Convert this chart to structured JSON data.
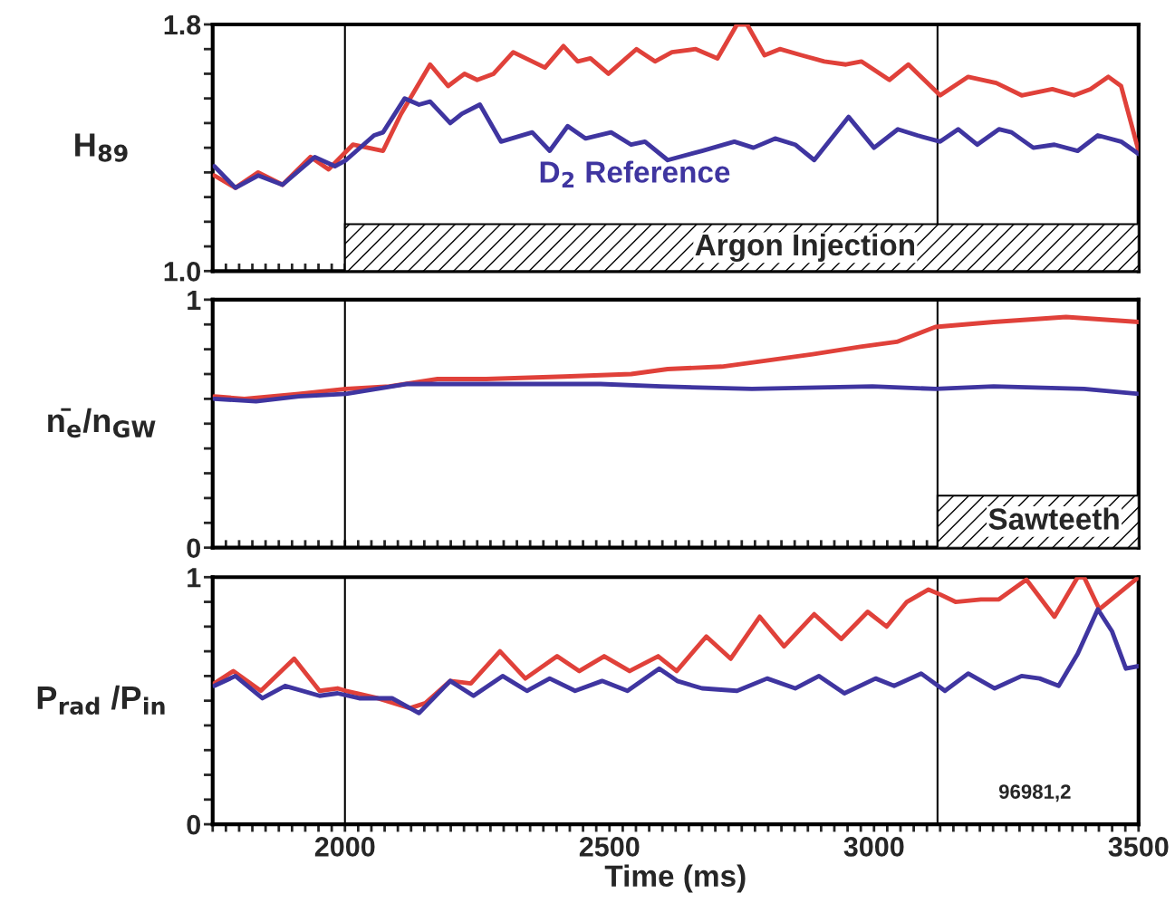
{
  "chart_data": [
    {
      "type": "line",
      "ylabel": "H$_{89}$",
      "xlim": [
        1750,
        3500
      ],
      "ylim": [
        1.0,
        1.8
      ],
      "tick_labels": "y",
      "xticks": [
        {
          "value": 1750,
          "label": null
        },
        {
          "value": 1775,
          "label": null
        },
        {
          "value": 1800,
          "label": null
        },
        {
          "value": 1825,
          "label": null
        },
        {
          "value": 1850,
          "label": null
        },
        {
          "value": 1875,
          "label": null
        },
        {
          "value": 1900,
          "label": null
        },
        {
          "value": 1925,
          "label": null
        },
        {
          "value": 1950,
          "label": null
        },
        {
          "value": 1975,
          "label": null
        },
        {
          "value": 2000,
          "label": null
        },
        {
          "value": 2025,
          "label": null
        },
        {
          "value": 2050,
          "label": null
        },
        {
          "value": 2075,
          "label": null
        },
        {
          "value": 2100,
          "label": null
        },
        {
          "value": 2125,
          "label": null
        },
        {
          "value": 2150,
          "label": null
        },
        {
          "value": 2175,
          "label": null
        },
        {
          "value": 2200,
          "label": null
        },
        {
          "value": 2225,
          "label": null
        },
        {
          "value": 2250,
          "label": null
        },
        {
          "value": 2275,
          "label": null
        },
        {
          "value": 2300,
          "label": null
        },
        {
          "value": 2325,
          "label": null
        },
        {
          "value": 2350,
          "label": null
        },
        {
          "value": 2375,
          "label": null
        },
        {
          "value": 2400,
          "label": null
        },
        {
          "value": 2425,
          "label": null
        },
        {
          "value": 2450,
          "label": null
        },
        {
          "value": 2475,
          "label": null
        },
        {
          "value": 2500,
          "label": null
        },
        {
          "value": 2525,
          "label": null
        },
        {
          "value": 2550,
          "label": null
        },
        {
          "value": 2575,
          "label": null
        },
        {
          "value": 2600,
          "label": null
        },
        {
          "value": 2625,
          "label": null
        },
        {
          "value": 2650,
          "label": null
        },
        {
          "value": 2675,
          "label": null
        },
        {
          "value": 2700,
          "label": null
        },
        {
          "value": 2725,
          "label": null
        },
        {
          "value": 2750,
          "label": null
        },
        {
          "value": 2775,
          "label": null
        },
        {
          "value": 2800,
          "label": null
        },
        {
          "value": 2825,
          "label": null
        },
        {
          "value": 2850,
          "label": null
        },
        {
          "value": 2875,
          "label": null
        },
        {
          "value": 2900,
          "label": null
        },
        {
          "value": 2925,
          "label": null
        },
        {
          "value": 2950,
          "label": null
        },
        {
          "value": 2975,
          "label": null
        },
        {
          "value": 3000,
          "label": null
        },
        {
          "value": 3025,
          "label": null
        },
        {
          "value": 3050,
          "label": null
        },
        {
          "value": 3075,
          "label": null
        },
        {
          "value": 3100,
          "label": null
        },
        {
          "value": 3125,
          "label": null
        },
        {
          "value": 3150,
          "label": null
        },
        {
          "value": 3175,
          "label": null
        },
        {
          "value": 3200,
          "label": null
        },
        {
          "value": 3225,
          "label": null
        },
        {
          "value": 3250,
          "label": null
        },
        {
          "value": 3275,
          "label": null
        },
        {
          "value": 3300,
          "label": null
        },
        {
          "value": 3325,
          "label": null
        },
        {
          "value": 3350,
          "label": null
        },
        {
          "value": 3375,
          "label": null
        },
        {
          "value": 3400,
          "label": null
        },
        {
          "value": 3425,
          "label": null
        },
        {
          "value": 3450,
          "label": null
        },
        {
          "value": 3475,
          "label": null
        },
        {
          "value": 3500,
          "label": null
        }
      ],
      "yticks": [
        {
          "value": 1.0,
          "label": "1.0"
        },
        {
          "value": 1.08,
          "label": null
        },
        {
          "value": 1.16,
          "label": null
        },
        {
          "value": 1.24,
          "label": null
        },
        {
          "value": 1.32,
          "label": null
        },
        {
          "value": 1.4,
          "label": null
        },
        {
          "value": 1.48,
          "label": null
        },
        {
          "value": 1.56,
          "label": null
        },
        {
          "value": 1.64,
          "label": null
        },
        {
          "value": 1.72,
          "label": null
        },
        {
          "value": 1.8,
          "label": "1.8"
        }
      ],
      "grid": false,
      "legend": false,
      "ref_lines": [
        {
          "axis": "x",
          "value": 2000,
          "color": "#000000"
        },
        {
          "axis": "x",
          "value": 3120,
          "color": "#000000"
        }
      ],
      "bands": [
        {
          "axis": "x",
          "from": 2000,
          "to": 3500,
          "label": "Argon Injection",
          "color": "#000000"
        }
      ],
      "series": [
        {
          "color": "#e0413a",
          "x": [
            1753,
            1793,
            1836,
            1882,
            1935,
            1969,
            2015,
            2072,
            2106,
            2161,
            2195,
            2226,
            2250,
            2281,
            2318,
            2378,
            2413,
            2440,
            2464,
            2498,
            2551,
            2586,
            2618,
            2663,
            2704,
            2741,
            2760,
            2793,
            2822,
            2863,
            2906,
            2947,
            2976,
            3029,
            3065,
            3125,
            3178,
            3231,
            3279,
            3337,
            3378,
            3409,
            3443,
            3467,
            3500
          ],
          "values": [
            1.31,
            1.27,
            1.32,
            1.28,
            1.37,
            1.33,
            1.41,
            1.39,
            1.51,
            1.67,
            1.6,
            1.64,
            1.62,
            1.64,
            1.71,
            1.66,
            1.73,
            1.68,
            1.69,
            1.64,
            1.72,
            1.68,
            1.71,
            1.72,
            1.69,
            1.8,
            1.8,
            1.7,
            1.72,
            1.7,
            1.68,
            1.67,
            1.68,
            1.62,
            1.67,
            1.57,
            1.63,
            1.61,
            1.57,
            1.59,
            1.57,
            1.59,
            1.63,
            1.6,
            1.39
          ]
        },
        {
          "name": "D$_{2}$ Reference",
          "color": "#3f35a0",
          "x": [
            1753,
            1793,
            1836,
            1882,
            1943,
            1981,
            2002,
            2055,
            2072,
            2113,
            2140,
            2161,
            2199,
            2221,
            2255,
            2295,
            2354,
            2387,
            2421,
            2455,
            2503,
            2541,
            2567,
            2610,
            2675,
            2736,
            2772,
            2813,
            2851,
            2887,
            2952,
            3000,
            3045,
            3082,
            3125,
            3159,
            3195,
            3236,
            3260,
            3301,
            3341,
            3385,
            3423,
            3467,
            3500
          ],
          "values": [
            1.34,
            1.27,
            1.31,
            1.28,
            1.37,
            1.34,
            1.36,
            1.44,
            1.45,
            1.56,
            1.54,
            1.55,
            1.48,
            1.51,
            1.54,
            1.42,
            1.45,
            1.39,
            1.47,
            1.43,
            1.45,
            1.41,
            1.42,
            1.36,
            1.39,
            1.42,
            1.4,
            1.43,
            1.41,
            1.36,
            1.5,
            1.4,
            1.46,
            1.44,
            1.42,
            1.46,
            1.41,
            1.46,
            1.45,
            1.4,
            1.41,
            1.39,
            1.44,
            1.42,
            1.38
          ]
        }
      ]
    },
    {
      "type": "line",
      "ylabel": "n̄$_{e}$/n$_{GW}$",
      "xlim": [
        1750,
        3500
      ],
      "ylim": [
        0,
        1
      ],
      "tick_labels": "y",
      "xticks": [
        {
          "value": 1750,
          "label": null
        },
        {
          "value": 1775,
          "label": null
        },
        {
          "value": 1800,
          "label": null
        },
        {
          "value": 1825,
          "label": null
        },
        {
          "value": 1850,
          "label": null
        },
        {
          "value": 1875,
          "label": null
        },
        {
          "value": 1900,
          "label": null
        },
        {
          "value": 1925,
          "label": null
        },
        {
          "value": 1950,
          "label": null
        },
        {
          "value": 1975,
          "label": null
        },
        {
          "value": 2000,
          "label": null
        },
        {
          "value": 2025,
          "label": null
        },
        {
          "value": 2050,
          "label": null
        },
        {
          "value": 2075,
          "label": null
        },
        {
          "value": 2100,
          "label": null
        },
        {
          "value": 2125,
          "label": null
        },
        {
          "value": 2150,
          "label": null
        },
        {
          "value": 2175,
          "label": null
        },
        {
          "value": 2200,
          "label": null
        },
        {
          "value": 2225,
          "label": null
        },
        {
          "value": 2250,
          "label": null
        },
        {
          "value": 2275,
          "label": null
        },
        {
          "value": 2300,
          "label": null
        },
        {
          "value": 2325,
          "label": null
        },
        {
          "value": 2350,
          "label": null
        },
        {
          "value": 2375,
          "label": null
        },
        {
          "value": 2400,
          "label": null
        },
        {
          "value": 2425,
          "label": null
        },
        {
          "value": 2450,
          "label": null
        },
        {
          "value": 2475,
          "label": null
        },
        {
          "value": 2500,
          "label": null
        },
        {
          "value": 2525,
          "label": null
        },
        {
          "value": 2550,
          "label": null
        },
        {
          "value": 2575,
          "label": null
        },
        {
          "value": 2600,
          "label": null
        },
        {
          "value": 2625,
          "label": null
        },
        {
          "value": 2650,
          "label": null
        },
        {
          "value": 2675,
          "label": null
        },
        {
          "value": 2700,
          "label": null
        },
        {
          "value": 2725,
          "label": null
        },
        {
          "value": 2750,
          "label": null
        },
        {
          "value": 2775,
          "label": null
        },
        {
          "value": 2800,
          "label": null
        },
        {
          "value": 2825,
          "label": null
        },
        {
          "value": 2850,
          "label": null
        },
        {
          "value": 2875,
          "label": null
        },
        {
          "value": 2900,
          "label": null
        },
        {
          "value": 2925,
          "label": null
        },
        {
          "value": 2950,
          "label": null
        },
        {
          "value": 2975,
          "label": null
        },
        {
          "value": 3000,
          "label": null
        },
        {
          "value": 3025,
          "label": null
        },
        {
          "value": 3050,
          "label": null
        },
        {
          "value": 3075,
          "label": null
        },
        {
          "value": 3100,
          "label": null
        },
        {
          "value": 3125,
          "label": null
        },
        {
          "value": 3150,
          "label": null
        },
        {
          "value": 3175,
          "label": null
        },
        {
          "value": 3200,
          "label": null
        },
        {
          "value": 3225,
          "label": null
        },
        {
          "value": 3250,
          "label": null
        },
        {
          "value": 3275,
          "label": null
        },
        {
          "value": 3300,
          "label": null
        },
        {
          "value": 3325,
          "label": null
        },
        {
          "value": 3350,
          "label": null
        },
        {
          "value": 3375,
          "label": null
        },
        {
          "value": 3400,
          "label": null
        },
        {
          "value": 3425,
          "label": null
        },
        {
          "value": 3450,
          "label": null
        },
        {
          "value": 3475,
          "label": null
        },
        {
          "value": 3500,
          "label": null
        }
      ],
      "yticks": [
        {
          "value": 0,
          "label": "0"
        },
        {
          "value": 0.1,
          "label": null
        },
        {
          "value": 0.2,
          "label": null
        },
        {
          "value": 0.3,
          "label": null
        },
        {
          "value": 0.4,
          "label": null
        },
        {
          "value": 0.5,
          "label": null
        },
        {
          "value": 0.6,
          "label": null
        },
        {
          "value": 0.7,
          "label": null
        },
        {
          "value": 0.8,
          "label": null
        },
        {
          "value": 0.9,
          "label": null
        },
        {
          "value": 1,
          "label": "1"
        }
      ],
      "grid": false,
      "legend": false,
      "ref_lines": [
        {
          "axis": "x",
          "value": 2000,
          "color": "#000000"
        },
        {
          "axis": "x",
          "value": 3120,
          "color": "#000000"
        }
      ],
      "bands": [
        {
          "axis": "x",
          "from": 3120,
          "to": 3500,
          "label": "Sawteeth",
          "color": "#000000"
        }
      ],
      "series": [
        {
          "color": "#e0413a",
          "x": [
            1753,
            1810,
            1913,
            2002,
            2084,
            2175,
            2267,
            2414,
            2541,
            2610,
            2712,
            2781,
            2884,
            2974,
            3043,
            3116,
            3226,
            3363,
            3500
          ],
          "values": [
            0.61,
            0.6,
            0.62,
            0.64,
            0.65,
            0.68,
            0.68,
            0.69,
            0.7,
            0.72,
            0.73,
            0.75,
            0.78,
            0.81,
            0.83,
            0.89,
            0.91,
            0.93,
            0.91
          ]
        },
        {
          "color": "#3f35a0",
          "x": [
            1753,
            1832,
            1913,
            2002,
            2118,
            2312,
            2483,
            2598,
            2769,
            2997,
            3116,
            3226,
            3397,
            3500
          ],
          "values": [
            0.6,
            0.59,
            0.61,
            0.62,
            0.66,
            0.66,
            0.66,
            0.65,
            0.64,
            0.65,
            0.64,
            0.65,
            0.64,
            0.62
          ]
        }
      ]
    },
    {
      "type": "line",
      "ylabel": "P$_{rad}$ /P$_{in}$",
      "xlabel": "Time (ms)",
      "xlim": [
        1750,
        3500
      ],
      "ylim": [
        0,
        1
      ],
      "xticks": [
        {
          "value": 1750,
          "label": null
        },
        {
          "value": 1775,
          "label": null
        },
        {
          "value": 1800,
          "label": null
        },
        {
          "value": 1825,
          "label": null
        },
        {
          "value": 1850,
          "label": null
        },
        {
          "value": 1875,
          "label": null
        },
        {
          "value": 1900,
          "label": null
        },
        {
          "value": 1925,
          "label": null
        },
        {
          "value": 1950,
          "label": null
        },
        {
          "value": 1975,
          "label": null
        },
        2000,
        {
          "value": 2025,
          "label": null
        },
        {
          "value": 2050,
          "label": null
        },
        {
          "value": 2075,
          "label": null
        },
        {
          "value": 2100,
          "label": null
        },
        {
          "value": 2125,
          "label": null
        },
        {
          "value": 2150,
          "label": null
        },
        {
          "value": 2175,
          "label": null
        },
        {
          "value": 2200,
          "label": null
        },
        {
          "value": 2225,
          "label": null
        },
        {
          "value": 2250,
          "label": null
        },
        {
          "value": 2275,
          "label": null
        },
        {
          "value": 2300,
          "label": null
        },
        {
          "value": 2325,
          "label": null
        },
        {
          "value": 2350,
          "label": null
        },
        {
          "value": 2375,
          "label": null
        },
        {
          "value": 2400,
          "label": null
        },
        {
          "value": 2425,
          "label": null
        },
        {
          "value": 2450,
          "label": null
        },
        {
          "value": 2475,
          "label": null
        },
        2500,
        {
          "value": 2525,
          "label": null
        },
        {
          "value": 2550,
          "label": null
        },
        {
          "value": 2575,
          "label": null
        },
        {
          "value": 2600,
          "label": null
        },
        {
          "value": 2625,
          "label": null
        },
        {
          "value": 2650,
          "label": null
        },
        {
          "value": 2675,
          "label": null
        },
        {
          "value": 2700,
          "label": null
        },
        {
          "value": 2725,
          "label": null
        },
        {
          "value": 2750,
          "label": null
        },
        {
          "value": 2775,
          "label": null
        },
        {
          "value": 2800,
          "label": null
        },
        {
          "value": 2825,
          "label": null
        },
        {
          "value": 2850,
          "label": null
        },
        {
          "value": 2875,
          "label": null
        },
        {
          "value": 2900,
          "label": null
        },
        {
          "value": 2925,
          "label": null
        },
        {
          "value": 2950,
          "label": null
        },
        {
          "value": 2975,
          "label": null
        },
        3000,
        {
          "value": 3025,
          "label": null
        },
        {
          "value": 3050,
          "label": null
        },
        {
          "value": 3075,
          "label": null
        },
        {
          "value": 3100,
          "label": null
        },
        {
          "value": 3125,
          "label": null
        },
        {
          "value": 3150,
          "label": null
        },
        {
          "value": 3175,
          "label": null
        },
        {
          "value": 3200,
          "label": null
        },
        {
          "value": 3225,
          "label": null
        },
        {
          "value": 3250,
          "label": null
        },
        {
          "value": 3275,
          "label": null
        },
        {
          "value": 3300,
          "label": null
        },
        {
          "value": 3325,
          "label": null
        },
        {
          "value": 3350,
          "label": null
        },
        {
          "value": 3375,
          "label": null
        },
        {
          "value": 3400,
          "label": null
        },
        {
          "value": 3425,
          "label": null
        },
        {
          "value": 3450,
          "label": null
        },
        {
          "value": 3475,
          "label": null
        },
        3500
      ],
      "yticks": [
        {
          "value": 0,
          "label": "0"
        },
        {
          "value": 0.1,
          "label": null
        },
        {
          "value": 0.2,
          "label": null
        },
        {
          "value": 0.3,
          "label": null
        },
        {
          "value": 0.4,
          "label": null
        },
        {
          "value": 0.5,
          "label": null
        },
        {
          "value": 0.6,
          "label": null
        },
        {
          "value": 0.7,
          "label": null
        },
        {
          "value": 0.8,
          "label": null
        },
        {
          "value": 0.9,
          "label": null
        },
        {
          "value": 1,
          "label": "1"
        }
      ],
      "grid": false,
      "legend": false,
      "ref_lines": [
        {
          "axis": "x",
          "value": 2000,
          "color": "#000000"
        },
        {
          "axis": "x",
          "value": 3120,
          "color": "#000000"
        }
      ],
      "annotations": [
        "96981,2"
      ],
      "series": [
        {
          "color": "#e0413a",
          "x": [
            1753,
            1789,
            1841,
            1904,
            1952,
            1986,
            2002,
            2062,
            2123,
            2152,
            2199,
            2238,
            2293,
            2341,
            2401,
            2443,
            2490,
            2538,
            2592,
            2627,
            2683,
            2729,
            2784,
            2830,
            2887,
            2938,
            2988,
            3024,
            3062,
            3103,
            3125,
            3154,
            3202,
            3236,
            3288,
            3341,
            3385,
            3397,
            3426,
            3500
          ],
          "values": [
            0.57,
            0.62,
            0.54,
            0.67,
            0.54,
            0.55,
            0.54,
            0.51,
            0.47,
            0.49,
            0.58,
            0.57,
            0.7,
            0.59,
            0.68,
            0.62,
            0.68,
            0.62,
            0.68,
            0.62,
            0.76,
            0.67,
            0.84,
            0.72,
            0.85,
            0.75,
            0.86,
            0.8,
            0.9,
            0.95,
            0.93,
            0.9,
            0.91,
            0.91,
            0.99,
            0.84,
            1.0,
            1.0,
            0.87,
            1.0
          ]
        },
        {
          "color": "#3f35a0",
          "x": [
            1753,
            1793,
            1844,
            1887,
            1952,
            1986,
            2027,
            2089,
            2140,
            2199,
            2243,
            2298,
            2344,
            2387,
            2435,
            2486,
            2534,
            2594,
            2628,
            2675,
            2741,
            2798,
            2851,
            2896,
            2944,
            3003,
            3038,
            3089,
            3134,
            3178,
            3228,
            3279,
            3313,
            3349,
            3385,
            3423,
            3450,
            3476,
            3500
          ],
          "values": [
            0.56,
            0.6,
            0.51,
            0.56,
            0.52,
            0.53,
            0.51,
            0.51,
            0.45,
            0.58,
            0.52,
            0.6,
            0.54,
            0.59,
            0.54,
            0.58,
            0.54,
            0.63,
            0.58,
            0.55,
            0.54,
            0.59,
            0.55,
            0.6,
            0.53,
            0.59,
            0.56,
            0.61,
            0.54,
            0.61,
            0.55,
            0.6,
            0.59,
            0.56,
            0.69,
            0.87,
            0.78,
            0.63,
            0.64
          ]
        }
      ]
    }
  ]
}
